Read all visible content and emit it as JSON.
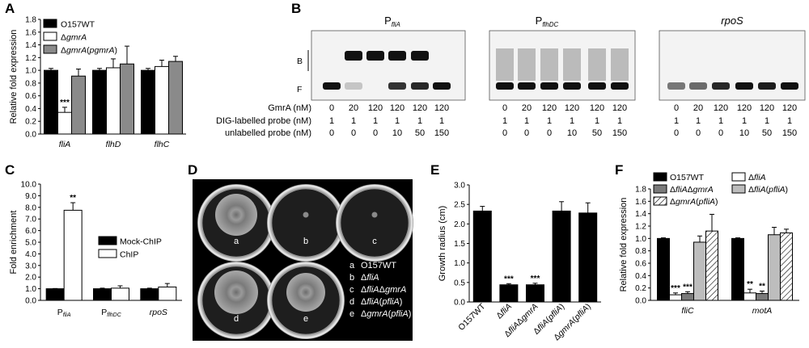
{
  "panels": {
    "A": "A",
    "B": "B",
    "C": "C",
    "D": "D",
    "E": "E",
    "F": "F"
  },
  "chart_data": [
    {
      "panel": "A",
      "type": "bar",
      "ylabel": "Relative fold expression",
      "ylim": [
        0,
        1.8
      ],
      "yticks": [
        "0.0",
        "0.2",
        "0.4",
        "0.6",
        "0.8",
        "1.0",
        "1.2",
        "1.4",
        "1.6",
        "1.8"
      ],
      "categories": [
        "fliA",
        "flhD",
        "flhC"
      ],
      "legend": [
        "O157WT",
        "ΔgmrA",
        "ΔgmrA(pgmrA)"
      ],
      "series": [
        {
          "name": "O157WT",
          "color": "#000000",
          "values": [
            1.0,
            1.0,
            1.0
          ],
          "errors": [
            0.03,
            0.03,
            0.03
          ]
        },
        {
          "name": "ΔgmrA",
          "color": "#ffffff",
          "values": [
            0.34,
            1.04,
            1.06
          ],
          "errors": [
            0.08,
            0.14,
            0.1
          ]
        },
        {
          "name": "ΔgmrA(pgmrA)",
          "color": "#8a8a8a",
          "values": [
            0.91,
            1.1,
            1.14
          ],
          "errors": [
            0.11,
            0.28,
            0.08
          ]
        }
      ],
      "annotations": [
        {
          "category": "fliA",
          "series": "ΔgmrA",
          "text": "***"
        }
      ]
    },
    {
      "panel": "C",
      "type": "bar",
      "ylabel": "Fold enrichment",
      "ylim": [
        0,
        10
      ],
      "yticks": [
        "0.0",
        "1.0",
        "2.0",
        "3.0",
        "4.0",
        "5.0",
        "6.0",
        "7.0",
        "8.0",
        "9.0",
        "10.0"
      ],
      "categories": [
        "fliA",
        "flhDC",
        "rpoS"
      ],
      "legend": [
        "Mock-ChIP",
        "ChIP"
      ],
      "series": [
        {
          "name": "Mock-ChIP",
          "color": "#000000",
          "values": [
            1.0,
            1.0,
            1.0
          ],
          "errors": [
            0.02,
            0.05,
            0.05
          ]
        },
        {
          "name": "ChIP",
          "color": "#ffffff",
          "values": [
            7.75,
            1.05,
            1.15
          ],
          "errors": [
            0.65,
            0.2,
            0.3
          ]
        }
      ],
      "annotations": [
        {
          "category": "fliA",
          "series": "ChIP",
          "text": "**"
        }
      ]
    },
    {
      "panel": "E",
      "type": "bar",
      "ylabel": "Growth radius (cm)",
      "ylim": [
        0,
        3.0
      ],
      "yticks": [
        "0.0",
        "0.5",
        "1.0",
        "1.5",
        "2.0",
        "2.5",
        "3.0"
      ],
      "categories": [
        "O157WT",
        "ΔfliA",
        "ΔfliAΔgmrA",
        "ΔfliA(pfliA)",
        "ΔgmrA(pfliA)"
      ],
      "series": [
        {
          "color": "#000000",
          "values": [
            2.33,
            0.44,
            0.44,
            2.33,
            2.28
          ],
          "errors": [
            0.12,
            0.03,
            0.04,
            0.24,
            0.26
          ]
        }
      ],
      "annotations": [
        {
          "category": "ΔfliA",
          "text": "***"
        },
        {
          "category": "ΔfliAΔgmrA",
          "text": "***"
        }
      ]
    },
    {
      "panel": "F",
      "type": "bar",
      "ylabel": "Relative fold expression",
      "ylim": [
        0,
        1.8
      ],
      "yticks": [
        "0.0",
        "0.2",
        "0.4",
        "0.6",
        "0.8",
        "1.0",
        "1.2",
        "1.4",
        "1.6",
        "1.8"
      ],
      "categories": [
        "fliC",
        "motA"
      ],
      "legend": [
        "O157WT",
        "ΔfliA",
        "ΔfliAΔgmrA",
        "ΔfliA(pfliA)",
        "ΔgmrA(pfliA)"
      ],
      "series": [
        {
          "name": "O157WT",
          "color": "#000000",
          "values": [
            1.0,
            1.0
          ],
          "errors": [
            0.01,
            0.01
          ]
        },
        {
          "name": "ΔfliA",
          "color": "#ffffff",
          "values": [
            0.09,
            0.12
          ],
          "errors": [
            0.03,
            0.06
          ]
        },
        {
          "name": "ΔfliAΔgmrA",
          "color": "#7a7a7a",
          "values": [
            0.11,
            0.11
          ],
          "errors": [
            0.03,
            0.04
          ]
        },
        {
          "name": "ΔfliA(pfliA)",
          "color": "#bdbdbd",
          "values": [
            0.94,
            1.06
          ],
          "errors": [
            0.1,
            0.12
          ]
        },
        {
          "name": "ΔgmrA(pfliA)",
          "color": "hatch",
          "values": [
            1.12,
            1.09
          ],
          "errors": [
            0.27,
            0.06
          ]
        }
      ],
      "annotations": [
        {
          "category": "fliC",
          "series": "ΔfliA",
          "text": "***"
        },
        {
          "category": "fliC",
          "series": "ΔfliAΔgmrA",
          "text": "***"
        },
        {
          "category": "motA",
          "series": "ΔfliA",
          "text": "**"
        },
        {
          "category": "motA",
          "series": "ΔfliAΔgmrA",
          "text": "**"
        }
      ]
    }
  ],
  "gel": {
    "titles": [
      "PfliA",
      "PflhDC",
      "rpoS"
    ],
    "band_labels": {
      "bound": "B",
      "free": "F"
    },
    "row_labels": [
      "GmrA (nM)",
      "DIG-labelled probe (nM)",
      "unlabelled probe (nM)"
    ],
    "columns": [
      [
        "0",
        "20",
        "120",
        "120",
        "120",
        "120"
      ],
      [
        "1",
        "1",
        "1",
        "1",
        "1",
        "1"
      ],
      [
        "0",
        "0",
        "0",
        "10",
        "50",
        "150"
      ]
    ]
  },
  "plate": {
    "labels": [
      "a",
      "b",
      "c",
      "d",
      "e"
    ],
    "legend": [
      {
        "key": "a",
        "text": "O157WT"
      },
      {
        "key": "b",
        "text": "ΔfliA"
      },
      {
        "key": "c",
        "text": "ΔfliAΔgmrA"
      },
      {
        "key": "d",
        "text": "ΔfliA(pfliA)"
      },
      {
        "key": "e",
        "text": "ΔgmrA(pfliA)"
      }
    ]
  }
}
